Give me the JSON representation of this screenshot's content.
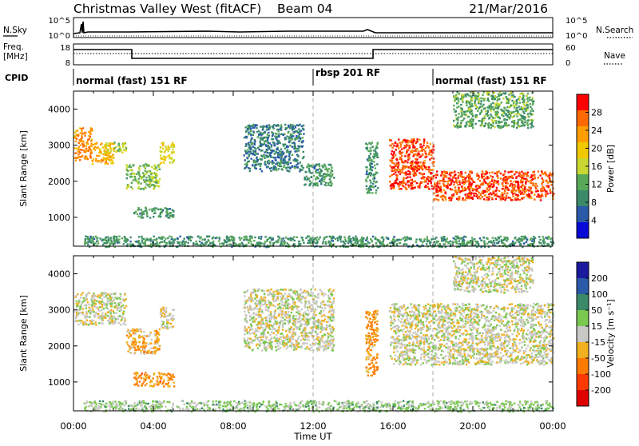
{
  "header": {
    "station": "Christmas Valley West (fitACF)",
    "beam": "Beam 04",
    "date": "21/Mar/2016"
  },
  "noise_panel": {
    "left_label": "N.Sky",
    "right_label": "N.Search",
    "left_ticks": [
      "10^5",
      "10^0"
    ],
    "right_ticks": [
      "10^5",
      "10^0"
    ]
  },
  "freq_panel": {
    "left_label_1": "Freq.",
    "left_label_2": "[MHz]",
    "left_ticks": [
      "18",
      "8"
    ],
    "right_ticks": [
      "60",
      "0"
    ],
    "right_label": "Nave"
  },
  "cpid_panel": {
    "label": "CPID",
    "segments": [
      {
        "name": "normal (fast) 151 RF",
        "start_hr": 0,
        "end_hr": 12
      },
      {
        "name": "rbsp 201 RF",
        "start_hr": 12,
        "end_hr": 18
      },
      {
        "name": "normal (fast) 151 RF",
        "start_hr": 18,
        "end_hr": 24
      }
    ]
  },
  "power_panel": {
    "ylabel": "Slant Range [km]",
    "colorbar_label": "Power [dB]",
    "colorbar_ticks": [
      "28",
      "24",
      "20",
      "16",
      "12",
      "8",
      "4"
    ],
    "colors": [
      "#ff0000",
      "#ff6a00",
      "#ff9e00",
      "#f0c800",
      "#c8d830",
      "#58a858",
      "#3a8a6a",
      "#2a5aa8",
      "#0a0ad8"
    ]
  },
  "velocity_panel": {
    "ylabel": "Slant Range [km]",
    "colorbar_label": "Velocity [m s⁻¹]",
    "colorbar_ticks": [
      "200",
      "100",
      "50",
      "15",
      "-15",
      "-50",
      "-100",
      "-200"
    ],
    "colors": [
      "#1a1a9e",
      "#2a5aa8",
      "#3a8a6a",
      "#7ac850",
      "#c8c8c4",
      "#f0b020",
      "#ff7a00",
      "#ff3a00",
      "#e00000"
    ]
  },
  "x_axis": {
    "label": "Time UT",
    "ticks": [
      "00:00",
      "04:00",
      "08:00",
      "12:00",
      "16:00",
      "20:00",
      "00:00"
    ]
  },
  "chart_data": {
    "type": "heatmap",
    "title": "Christmas Valley West (fitACF)",
    "subtitle": "Beam 04  21/Mar/2016",
    "xlabel": "Time UT",
    "ylabel": "Slant Range [km]",
    "xlim": [
      0,
      24
    ],
    "ylim": [
      200,
      4500
    ],
    "yticks": [
      1000,
      2000,
      3000,
      4000
    ],
    "grid": false,
    "dashed_markers_hr": [
      12,
      18
    ],
    "series": [
      {
        "name": "Power [dB]",
        "cmap_range": [
          0,
          32
        ],
        "echo_regions": [
          {
            "t0": 0.0,
            "t1": 0.9,
            "r0": 2600,
            "r1": 3500,
            "value": 24
          },
          {
            "t0": 0.9,
            "t1": 2.0,
            "r0": 2500,
            "r1": 3100,
            "value": 22
          },
          {
            "t0": 1.5,
            "t1": 2.6,
            "r0": 2800,
            "r1": 3100,
            "value": 16
          },
          {
            "t0": 2.6,
            "t1": 4.3,
            "r0": 1800,
            "r1": 2500,
            "value": 14
          },
          {
            "t0": 4.3,
            "t1": 5.0,
            "r0": 2500,
            "r1": 3100,
            "value": 18
          },
          {
            "t0": 3.0,
            "t1": 5.0,
            "r0": 1000,
            "r1": 1300,
            "value": 10
          },
          {
            "t0": 8.5,
            "t1": 11.5,
            "r0": 2300,
            "r1": 3600,
            "value": 8
          },
          {
            "t0": 11.5,
            "t1": 13.0,
            "r0": 1900,
            "r1": 2500,
            "value": 10
          },
          {
            "t0": 14.6,
            "t1": 15.2,
            "r0": 1700,
            "r1": 3100,
            "value": 10
          },
          {
            "t0": 15.8,
            "t1": 18.0,
            "r0": 1800,
            "r1": 3200,
            "value": 28
          },
          {
            "t0": 18.0,
            "t1": 24.0,
            "r0": 1500,
            "r1": 2300,
            "value": 28
          },
          {
            "t0": 19.0,
            "t1": 23.0,
            "r0": 3500,
            "r1": 4500,
            "value": 12
          },
          {
            "t0": 0.5,
            "t1": 24.0,
            "r0": 200,
            "r1": 500,
            "value": 10
          }
        ]
      },
      {
        "name": "Velocity [m s-1]",
        "cmap_range": [
          -250,
          250
        ],
        "echo_regions": [
          {
            "t0": 0.0,
            "t1": 2.6,
            "r0": 2600,
            "r1": 3500,
            "value": 0
          },
          {
            "t0": 2.6,
            "t1": 4.3,
            "r0": 1800,
            "r1": 2500,
            "value": -60
          },
          {
            "t0": 4.3,
            "t1": 5.0,
            "r0": 2500,
            "r1": 3100,
            "value": -20
          },
          {
            "t0": 3.0,
            "t1": 5.0,
            "r0": 900,
            "r1": 1300,
            "value": -90
          },
          {
            "t0": 8.5,
            "t1": 13.0,
            "r0": 1900,
            "r1": 3600,
            "value": 0
          },
          {
            "t0": 14.6,
            "t1": 15.2,
            "r0": 1200,
            "r1": 3000,
            "value": -80
          },
          {
            "t0": 15.8,
            "t1": 24.0,
            "r0": 1500,
            "r1": 3200,
            "value": 0
          },
          {
            "t0": 19.0,
            "t1": 23.0,
            "r0": 3500,
            "r1": 4500,
            "value": 0
          },
          {
            "t0": 0.5,
            "t1": 24.0,
            "r0": 200,
            "r1": 500,
            "value": 40
          }
        ]
      }
    ]
  }
}
